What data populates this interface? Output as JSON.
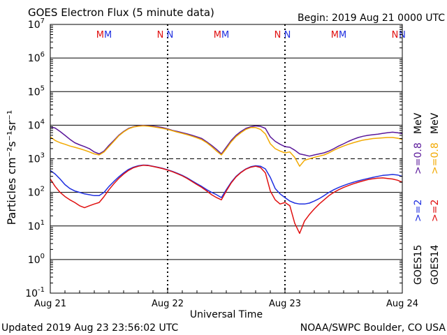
{
  "header": {
    "title": "GOES Electron Flux (5 minute data)",
    "begin": "Begin: 2019 Aug 21 0000 UTC"
  },
  "footer": {
    "updated": "Updated 2019 Aug 23 23:56:02 UTC",
    "credit": "NOAA/SWPC Boulder, CO USA"
  },
  "colors": {
    "goes15_high": "#5a189a",
    "goes14_high": "#f2a900",
    "goes15_low": "#1f2fe0",
    "goes14_low": "#e01010",
    "m_marker": "#e01010",
    "n_marker": "#1f2fe0"
  },
  "chart_data": {
    "type": "line",
    "title": "GOES Electron Flux (5 minute data)",
    "xlabel": "Universal Time",
    "ylabel": "Particles cm⁻²s⁻¹sr⁻¹",
    "y_scale": "log",
    "ylim": [
      0.1,
      10000000
    ],
    "y_ticks": [
      {
        "value": 0.1,
        "base": "10",
        "exp": "-1"
      },
      {
        "value": 1,
        "base": "10",
        "exp": "0"
      },
      {
        "value": 10,
        "base": "10",
        "exp": "1"
      },
      {
        "value": 100,
        "base": "10",
        "exp": "2"
      },
      {
        "value": 1000,
        "base": "10",
        "exp": "3"
      },
      {
        "value": 10000,
        "base": "10",
        "exp": "4"
      },
      {
        "value": 100000,
        "base": "10",
        "exp": "5"
      },
      {
        "value": 1000000,
        "base": "10",
        "exp": "6"
      },
      {
        "value": 10000000,
        "base": "10",
        "exp": "7"
      }
    ],
    "x_range_hours": [
      0,
      72
    ],
    "x_ticks": [
      {
        "hour": 0,
        "label": "Aug 21"
      },
      {
        "hour": 24,
        "label": "Aug 22"
      },
      {
        "hour": 48,
        "label": "Aug 23"
      },
      {
        "hour": 72,
        "label": "Aug 24"
      }
    ],
    "threshold": {
      "value": 1000,
      "style": "dashed"
    },
    "grid": true,
    "markers": [
      {
        "label": "M",
        "hour": 10.2,
        "color": "m_marker"
      },
      {
        "label": "M",
        "hour": 11.8,
        "color": "n_marker"
      },
      {
        "label": "N",
        "hour": 22.5,
        "color": "m_marker"
      },
      {
        "label": "N",
        "hour": 24.5,
        "color": "n_marker"
      },
      {
        "label": "M",
        "hour": 34.2,
        "color": "m_marker"
      },
      {
        "label": "M",
        "hour": 35.8,
        "color": "n_marker"
      },
      {
        "label": "N",
        "hour": 46.5,
        "color": "m_marker"
      },
      {
        "label": "N",
        "hour": 48.5,
        "color": "n_marker"
      },
      {
        "label": "M",
        "hour": 58.2,
        "color": "m_marker"
      },
      {
        "label": "M",
        "hour": 59.8,
        "color": "n_marker"
      },
      {
        "label": "N",
        "hour": 70.5,
        "color": "m_marker"
      },
      {
        "label": "N",
        "hour": 72.0,
        "color": "n_marker"
      }
    ],
    "legend": {
      "position": "right",
      "goes15": "GOES15",
      "goes14": "GOES14",
      "low": ">=2",
      "high": ">=0.8",
      "unit": "MeV"
    },
    "series": [
      {
        "name": ">=0.8 MeV GOES15",
        "satellite": "goes15",
        "energy": "high",
        "color": "goes15_high",
        "x": [
          0,
          1,
          2,
          3,
          4,
          5,
          6,
          7,
          8,
          9,
          10,
          11,
          12,
          13,
          14,
          15,
          16,
          17,
          18,
          19,
          20,
          21,
          22,
          23,
          24,
          25,
          26,
          27,
          28,
          29,
          30,
          31,
          32,
          33,
          34,
          35,
          36,
          37,
          38,
          39,
          40,
          41,
          42,
          43,
          44,
          45,
          46,
          47,
          48,
          49,
          50,
          51,
          52,
          53,
          54,
          55,
          56,
          57,
          58,
          59,
          60,
          61,
          62,
          63,
          64,
          65,
          66,
          67,
          68,
          69,
          70,
          71,
          72
        ],
        "y": [
          9000,
          8200,
          6500,
          5000,
          3800,
          3000,
          2600,
          2300,
          2000,
          1600,
          1400,
          1700,
          2500,
          3500,
          5000,
          6500,
          8000,
          9000,
          9500,
          9800,
          9600,
          9400,
          9000,
          8500,
          7800,
          7000,
          6500,
          6000,
          5500,
          5000,
          4500,
          4000,
          3200,
          2500,
          1900,
          1400,
          2200,
          3500,
          5000,
          6500,
          8000,
          9000,
          9500,
          9200,
          8000,
          4500,
          3300,
          2700,
          2300,
          2200,
          1800,
          1400,
          1300,
          1200,
          1300,
          1400,
          1500,
          1700,
          2000,
          2400,
          2800,
          3300,
          3800,
          4300,
          4700,
          5000,
          5200,
          5400,
          5700,
          6000,
          6200,
          6000,
          5600
        ]
      },
      {
        "name": ">=0.8 MeV GOES14",
        "satellite": "goes14",
        "energy": "high",
        "color": "goes14_high",
        "x": [
          0,
          1,
          2,
          3,
          4,
          5,
          6,
          7,
          8,
          9,
          10,
          11,
          12,
          13,
          14,
          15,
          16,
          17,
          18,
          19,
          20,
          21,
          22,
          23,
          24,
          25,
          26,
          27,
          28,
          29,
          30,
          31,
          32,
          33,
          34,
          35,
          36,
          37,
          38,
          39,
          40,
          41,
          42,
          43,
          44,
          45,
          46,
          47,
          48,
          49,
          50,
          51,
          52,
          53,
          54,
          55,
          56,
          57,
          58,
          59,
          60,
          61,
          62,
          63,
          64,
          65,
          66,
          67,
          68,
          69,
          70,
          71,
          72
        ],
        "y": [
          4500,
          3500,
          3000,
          2700,
          2400,
          2200,
          2000,
          1800,
          1600,
          1400,
          1300,
          1600,
          2300,
          3300,
          4800,
          6300,
          7800,
          8800,
          9300,
          9600,
          9400,
          9000,
          8500,
          8000,
          7500,
          6800,
          6200,
          5700,
          5200,
          4700,
          4200,
          3700,
          3000,
          2300,
          1700,
          1300,
          2000,
          3200,
          4600,
          6000,
          7500,
          8500,
          8500,
          7500,
          5500,
          2800,
          2000,
          1700,
          1500,
          1600,
          1100,
          600,
          900,
          1000,
          1100,
          1200,
          1300,
          1500,
          1800,
          2100,
          2400,
          2700,
          3000,
          3300,
          3600,
          3800,
          4000,
          4100,
          4200,
          4300,
          4300,
          4100,
          3800
        ]
      },
      {
        "name": ">=2 MeV GOES15",
        "satellite": "goes15",
        "energy": "low",
        "color": "goes15_low",
        "x": [
          0,
          1,
          2,
          3,
          4,
          5,
          6,
          7,
          8,
          9,
          10,
          11,
          12,
          13,
          14,
          15,
          16,
          17,
          18,
          19,
          20,
          21,
          22,
          23,
          24,
          25,
          26,
          27,
          28,
          29,
          30,
          31,
          32,
          33,
          34,
          35,
          36,
          37,
          38,
          39,
          40,
          41,
          42,
          43,
          44,
          45,
          46,
          47,
          48,
          49,
          50,
          51,
          52,
          53,
          54,
          55,
          56,
          57,
          58,
          59,
          60,
          61,
          62,
          63,
          64,
          65,
          66,
          67,
          68,
          69,
          70,
          71,
          72
        ],
        "y": [
          450,
          350,
          250,
          170,
          130,
          110,
          100,
          90,
          85,
          80,
          80,
          100,
          150,
          210,
          290,
          380,
          480,
          560,
          620,
          650,
          640,
          600,
          560,
          520,
          470,
          420,
          370,
          320,
          270,
          220,
          180,
          150,
          120,
          100,
          85,
          70,
          120,
          200,
          300,
          400,
          500,
          580,
          620,
          600,
          500,
          280,
          130,
          90,
          70,
          55,
          48,
          45,
          45,
          48,
          55,
          65,
          80,
          100,
          120,
          140,
          160,
          180,
          200,
          220,
          240,
          260,
          280,
          300,
          320,
          330,
          340,
          330,
          300
        ]
      },
      {
        "name": ">=2 MeV GOES14",
        "satellite": "goes14",
        "energy": "low",
        "color": "goes14_low",
        "x": [
          0,
          1,
          2,
          3,
          4,
          5,
          6,
          7,
          8,
          9,
          10,
          11,
          12,
          13,
          14,
          15,
          16,
          17,
          18,
          19,
          20,
          21,
          22,
          23,
          24,
          25,
          26,
          27,
          28,
          29,
          30,
          31,
          32,
          33,
          34,
          35,
          36,
          37,
          38,
          39,
          40,
          41,
          42,
          43,
          44,
          45,
          46,
          47,
          48,
          49,
          50,
          51,
          52,
          53,
          54,
          55,
          56,
          57,
          58,
          59,
          60,
          61,
          62,
          63,
          64,
          65,
          66,
          67,
          68,
          69,
          70,
          71,
          72
        ],
        "y": [
          250,
          150,
          100,
          75,
          60,
          50,
          40,
          35,
          40,
          45,
          50,
          75,
          120,
          180,
          260,
          350,
          450,
          540,
          600,
          640,
          630,
          590,
          550,
          510,
          460,
          410,
          360,
          310,
          260,
          210,
          170,
          140,
          110,
          85,
          70,
          60,
          110,
          190,
          290,
          390,
          490,
          560,
          600,
          550,
          380,
          110,
          60,
          45,
          50,
          40,
          12,
          6,
          14,
          22,
          32,
          45,
          60,
          80,
          100,
          120,
          140,
          160,
          180,
          200,
          220,
          240,
          255,
          265,
          270,
          260,
          250,
          230,
          200
        ]
      }
    ]
  }
}
